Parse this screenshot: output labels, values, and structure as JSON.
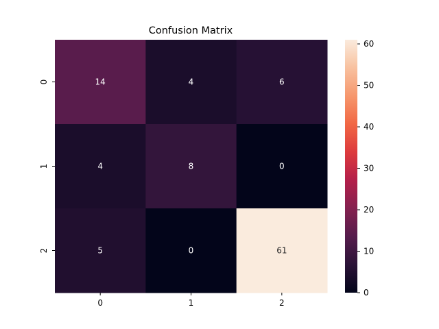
{
  "chart_data": {
    "type": "heatmap",
    "title": "Confusion Matrix",
    "x_labels": [
      "0",
      "1",
      "2"
    ],
    "y_labels": [
      "0",
      "1",
      "2"
    ],
    "values": [
      [
        14,
        4,
        6
      ],
      [
        4,
        8,
        0
      ],
      [
        5,
        0,
        61
      ]
    ],
    "colorbar": {
      "min": 0,
      "max": 61,
      "ticks": [
        0,
        10,
        20,
        30,
        40,
        50,
        60
      ],
      "colormap": [
        "#03051a",
        "#2b1337",
        "#561c4c",
        "#84214f",
        "#b31f4a",
        "#dd3a3d",
        "#f16744",
        "#f6976d",
        "#f8c19f",
        "#faebdd"
      ]
    },
    "annotations": true,
    "grid": false
  }
}
